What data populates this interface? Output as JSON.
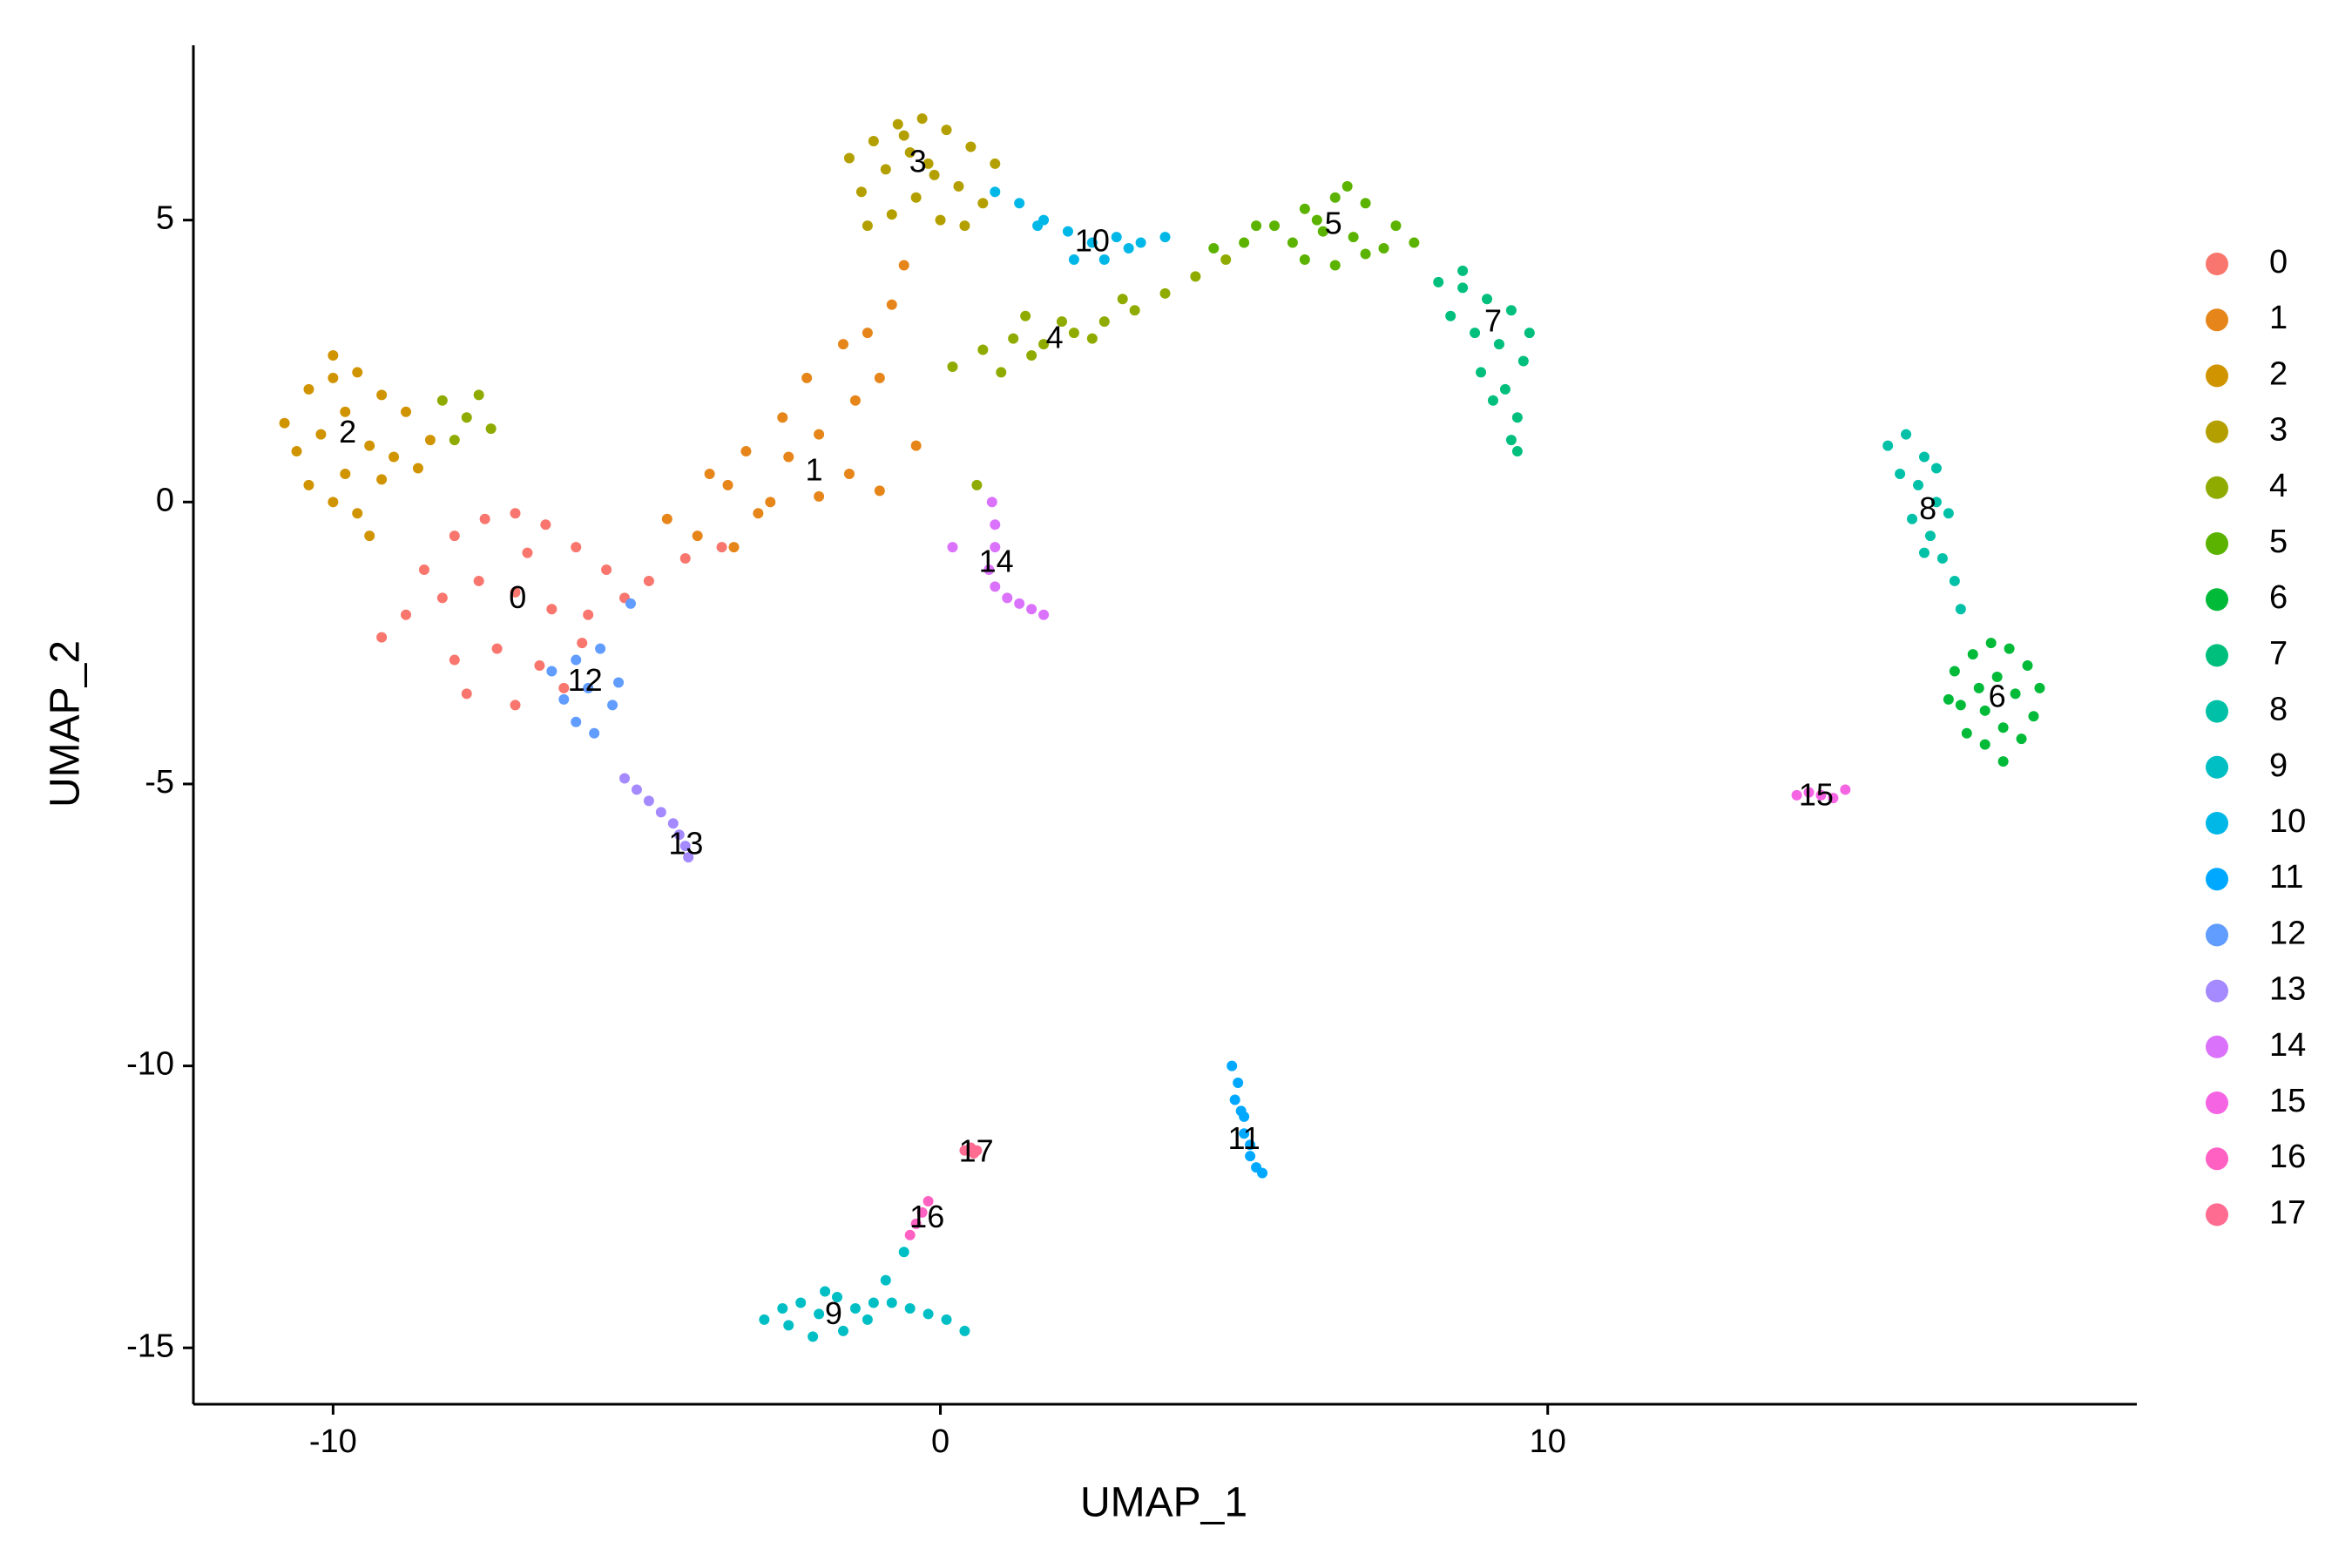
{
  "chart_data": {
    "type": "scatter",
    "xlabel": "UMAP_1",
    "ylabel": "UMAP_2",
    "xlim": [
      -12.3,
      19.7
    ],
    "ylim": [
      -16,
      8.1
    ],
    "xticks": [
      -10,
      0,
      10
    ],
    "yticks": [
      -15,
      -10,
      -5,
      0,
      5
    ],
    "grid": false,
    "legend": "right",
    "series": [
      {
        "name": "0",
        "color": "#F8766D",
        "x": [
          -8.5,
          -8,
          -7.5,
          -7,
          -6.5,
          -6,
          -5.5,
          -8.8,
          -8.2,
          -7.6,
          -7,
          -6.4,
          -5.8,
          -5.2,
          -8,
          -7.3,
          -6.6,
          -5.9,
          -7.8,
          -7,
          -6.2,
          -4.8,
          -4.2,
          -3.6,
          -9.2,
          -6.8
        ],
        "y": [
          -1.2,
          -0.6,
          -0.3,
          -0.2,
          -0.4,
          -0.8,
          -1.2,
          -2.0,
          -1.7,
          -1.4,
          -1.6,
          -1.9,
          -2.0,
          -1.7,
          -2.8,
          -2.6,
          -2.9,
          -2.5,
          -3.4,
          -3.6,
          -3.3,
          -1.4,
          -1.0,
          -0.8,
          -2.4,
          -0.9
        ]
      },
      {
        "name": "1",
        "color": "#E6861A",
        "x": [
          -4.5,
          -4,
          -3.5,
          -3,
          -2.5,
          -2,
          -1.5,
          -1,
          -3.8,
          -3.2,
          -2.6,
          -2,
          -1.4,
          -2.2,
          -1.6,
          -1,
          -0.8,
          -0.6,
          -1.2,
          -2.8,
          -3.4,
          -0.4
        ],
        "y": [
          -0.3,
          -0.6,
          0.3,
          -0.2,
          0.8,
          0.1,
          0.5,
          0.2,
          0.5,
          0.9,
          1.5,
          1.2,
          1.8,
          2.2,
          2.8,
          2.2,
          3.5,
          4.2,
          3.0,
          0.0,
          -0.8,
          1.0
        ]
      },
      {
        "name": "2",
        "color": "#D09400",
        "x": [
          -10.8,
          -10.4,
          -10,
          -9.6,
          -9.2,
          -8.8,
          -10.6,
          -10.2,
          -9.8,
          -9.4,
          -9,
          -8.6,
          -10.4,
          -10,
          -9.6,
          -9.2,
          -10,
          -9.8,
          -8.4,
          -9.4
        ],
        "y": [
          1.4,
          2.0,
          2.6,
          2.3,
          1.9,
          1.6,
          0.9,
          1.2,
          1.6,
          1.0,
          0.8,
          0.6,
          0.3,
          0.0,
          -0.2,
          0.4,
          2.2,
          0.5,
          1.1,
          -0.6
        ]
      },
      {
        "name": "3",
        "color": "#B3A000",
        "x": [
          -1.5,
          -1.1,
          -0.7,
          -0.3,
          0.1,
          0.5,
          0.9,
          -1.3,
          -0.9,
          -0.5,
          -0.1,
          0.3,
          0.7,
          -1.2,
          -0.8,
          -0.4,
          0,
          0.4,
          -0.6,
          -0.2
        ],
        "y": [
          6.1,
          6.4,
          6.7,
          6.8,
          6.6,
          6.3,
          6.0,
          5.5,
          5.9,
          6.2,
          5.8,
          5.6,
          5.3,
          4.9,
          5.1,
          5.4,
          5.0,
          4.9,
          6.5,
          6.0
        ]
      },
      {
        "name": "4",
        "color": "#8FAB00",
        "x": [
          0.2,
          0.7,
          1.2,
          1.7,
          2.2,
          2.7,
          3.2,
          3.7,
          4.2,
          4.7,
          1.0,
          1.5,
          2.0,
          2.5,
          3.0,
          1.4,
          -8.2,
          -7.8,
          -7.4,
          -8.0,
          -7.6,
          0.6
        ],
        "y": [
          2.4,
          2.7,
          2.9,
          2.8,
          3.0,
          3.2,
          3.4,
          3.7,
          4.0,
          4.3,
          2.3,
          2.6,
          3.2,
          2.9,
          3.6,
          3.3,
          1.8,
          1.5,
          1.3,
          1.1,
          1.9,
          0.3
        ]
      },
      {
        "name": "5",
        "color": "#5BB300",
        "x": [
          4.5,
          5.0,
          5.5,
          6.0,
          6.5,
          7.0,
          7.5,
          5.8,
          6.3,
          6.8,
          7.3,
          6.0,
          6.5,
          7.0,
          6.7,
          5.2,
          7.8,
          6.2
        ],
        "y": [
          4.5,
          4.6,
          4.9,
          5.2,
          5.4,
          5.3,
          4.9,
          4.6,
          4.8,
          4.7,
          4.5,
          4.3,
          4.2,
          4.4,
          5.6,
          4.9,
          4.6,
          5.0
        ]
      },
      {
        "name": "6",
        "color": "#00BA38",
        "x": [
          16.7,
          17.0,
          17.3,
          17.6,
          17.9,
          18.1,
          16.8,
          17.1,
          17.4,
          17.7,
          18.0,
          16.9,
          17.2,
          17.5,
          17.8,
          17.2,
          17.5,
          16.6
        ],
        "y": [
          -3.0,
          -2.7,
          -2.5,
          -2.6,
          -2.9,
          -3.3,
          -3.6,
          -3.3,
          -3.1,
          -3.4,
          -3.8,
          -4.1,
          -4.3,
          -4.0,
          -4.2,
          -3.7,
          -4.6,
          -3.5
        ]
      },
      {
        "name": "7",
        "color": "#00BF7D",
        "x": [
          8.2,
          8.6,
          9.0,
          9.4,
          9.7,
          8.4,
          8.8,
          9.2,
          9.6,
          8.9,
          9.3,
          9.5,
          9.1,
          9.4,
          9.5,
          8.6
        ],
        "y": [
          3.9,
          3.8,
          3.6,
          3.4,
          3.0,
          3.3,
          3.0,
          2.8,
          2.5,
          2.3,
          2.0,
          1.5,
          1.8,
          1.1,
          0.9,
          4.1
        ]
      },
      {
        "name": "8",
        "color": "#00C1A7",
        "x": [
          15.6,
          15.9,
          16.2,
          15.8,
          16.1,
          16.4,
          16.0,
          16.3,
          16.6,
          16.5,
          16.7,
          16.8,
          16.2,
          16.4
        ],
        "y": [
          1.0,
          1.2,
          0.8,
          0.5,
          0.3,
          0.0,
          -0.3,
          -0.6,
          -0.2,
          -1.0,
          -1.4,
          -1.9,
          -0.9,
          0.6
        ]
      },
      {
        "name": "9",
        "color": "#00BFC4",
        "x": [
          -2.9,
          -2.6,
          -2.3,
          -2.0,
          -1.7,
          -1.4,
          -1.1,
          -2.5,
          -2.1,
          -1.6,
          -1.2,
          -0.8,
          -0.5,
          -0.2,
          0.1,
          0.4,
          -0.9,
          -0.6,
          -1.9
        ],
        "y": [
          -14.5,
          -14.3,
          -14.2,
          -14.4,
          -14.1,
          -14.3,
          -14.2,
          -14.6,
          -14.8,
          -14.7,
          -14.5,
          -14.2,
          -14.3,
          -14.4,
          -14.5,
          -14.7,
          -13.8,
          -13.3,
          -14.0
        ]
      },
      {
        "name": "10",
        "color": "#00B8E7",
        "x": [
          0.9,
          1.3,
          1.7,
          2.1,
          2.5,
          2.9,
          3.3,
          3.7,
          2.2,
          2.7,
          3.1,
          1.6
        ],
        "y": [
          5.5,
          5.3,
          5.0,
          4.8,
          4.6,
          4.7,
          4.6,
          4.7,
          4.3,
          4.3,
          4.5,
          4.9
        ]
      },
      {
        "name": "11",
        "color": "#00A9FF",
        "x": [
          4.8,
          4.9,
          4.85,
          5.0,
          5.0,
          5.1,
          5.1,
          5.2,
          5.3,
          4.95
        ],
        "y": [
          -10.0,
          -10.3,
          -10.6,
          -10.9,
          -11.2,
          -11.4,
          -11.6,
          -11.8,
          -11.9,
          -10.8
        ]
      },
      {
        "name": "12",
        "color": "#619CFF",
        "x": [
          -6.4,
          -6.0,
          -5.6,
          -5.3,
          -6.2,
          -5.8,
          -5.4,
          -6.0,
          -5.7,
          -5.1
        ],
        "y": [
          -3.0,
          -2.8,
          -2.6,
          -3.2,
          -3.5,
          -3.3,
          -3.6,
          -3.9,
          -4.1,
          -1.8
        ]
      },
      {
        "name": "13",
        "color": "#A58AFF",
        "x": [
          -5.2,
          -5.0,
          -4.8,
          -4.6,
          -4.4,
          -4.3,
          -4.2,
          -4.15
        ],
        "y": [
          -4.9,
          -5.1,
          -5.3,
          -5.5,
          -5.7,
          -5.9,
          -6.1,
          -6.3
        ]
      },
      {
        "name": "14",
        "color": "#DB72FB",
        "x": [
          0.85,
          0.9,
          0.9,
          0.8,
          0.9,
          1.1,
          1.3,
          1.5,
          1.7,
          0.2
        ],
        "y": [
          0.0,
          -0.4,
          -0.8,
          -1.2,
          -1.5,
          -1.7,
          -1.8,
          -1.9,
          -2.0,
          -0.8
        ]
      },
      {
        "name": "15",
        "color": "#F564E3",
        "x": [
          14.1,
          14.3,
          14.5,
          14.7,
          14.9
        ],
        "y": [
          -5.2,
          -5.15,
          -5.2,
          -5.25,
          -5.1
        ]
      },
      {
        "name": "16",
        "color": "#FF61C3",
        "x": [
          -0.5,
          -0.4,
          -0.3,
          -0.2
        ],
        "y": [
          -13.0,
          -12.8,
          -12.6,
          -12.4
        ]
      },
      {
        "name": "17",
        "color": "#FF6C91",
        "x": [
          0.4,
          0.5,
          0.6,
          0.55
        ],
        "y": [
          -11.5,
          -11.45,
          -11.5,
          -11.55
        ]
      }
    ],
    "annotations": [
      {
        "text": "0",
        "x": -6.96,
        "y": -1.73
      },
      {
        "text": "1",
        "x": -2.08,
        "y": 0.53
      },
      {
        "text": "2",
        "x": -9.76,
        "y": 1.2
      },
      {
        "text": "3",
        "x": -0.37,
        "y": 6.0
      },
      {
        "text": "4",
        "x": 1.88,
        "y": 2.88
      },
      {
        "text": "5",
        "x": 6.47,
        "y": 4.9
      },
      {
        "text": "6",
        "x": 17.4,
        "y": -3.49
      },
      {
        "text": "7",
        "x": 9.1,
        "y": 3.17
      },
      {
        "text": "8",
        "x": 16.26,
        "y": -0.16
      },
      {
        "text": "9",
        "x": -1.76,
        "y": -14.43
      },
      {
        "text": "10",
        "x": 2.5,
        "y": 4.59
      },
      {
        "text": "11",
        "x": 5.0,
        "y": -11.33
      },
      {
        "text": "12",
        "x": -5.85,
        "y": -3.2
      },
      {
        "text": "13",
        "x": -4.19,
        "y": -6.1
      },
      {
        "text": "14",
        "x": 0.92,
        "y": -1.09
      },
      {
        "text": "15",
        "x": 14.42,
        "y": -5.23
      },
      {
        "text": "16",
        "x": -0.22,
        "y": -12.72
      },
      {
        "text": "17",
        "x": 0.59,
        "y": -11.55
      }
    ]
  }
}
